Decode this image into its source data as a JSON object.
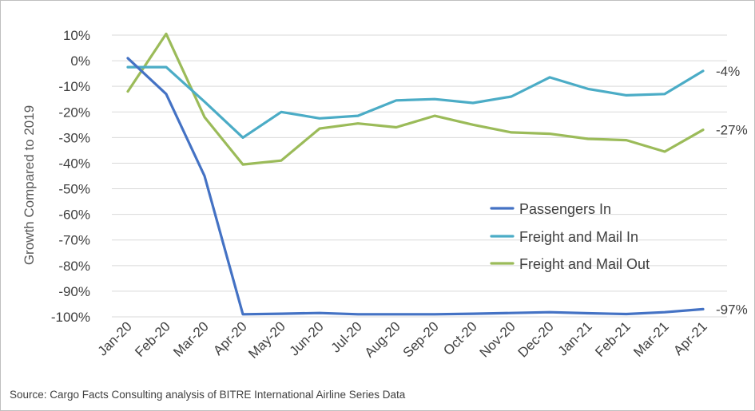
{
  "chart_data": {
    "type": "line",
    "ylabel": "Growth Compared to 2019",
    "ylim": [
      -100,
      10
    ],
    "yticks": [
      "10%",
      "0%",
      "-10%",
      "-20%",
      "-30%",
      "-40%",
      "-50%",
      "-60%",
      "-70%",
      "-80%",
      "-90%",
      "-100%"
    ],
    "categories": [
      "Jan-20",
      "Feb-20",
      "Mar-20",
      "Apr-20",
      "May-20",
      "Jun-20",
      "Jul-20",
      "Aug-20",
      "Sep-20",
      "Oct-20",
      "Nov-20",
      "Dec-20",
      "Jan-21",
      "Feb-21",
      "Mar-21",
      "Apr-21"
    ],
    "grid": true,
    "legend_position": "right-middle",
    "series": [
      {
        "name": "Passengers In",
        "color": "#4472c4",
        "end_label": "-97%",
        "values": [
          1,
          -13,
          -45,
          -99,
          -98.8,
          -98.5,
          -99,
          -99,
          -99,
          -98.8,
          -98.5,
          -98.2,
          -98.6,
          -98.9,
          -98.2,
          -97
        ]
      },
      {
        "name": "Freight and Mail In",
        "color": "#4bacc6",
        "end_label": "-4%",
        "values": [
          -2.5,
          -2.5,
          -16,
          -30,
          -20,
          -22.5,
          -21.5,
          -15.5,
          -15,
          -16.5,
          -14,
          -6.5,
          -11,
          -13.5,
          -13,
          -4
        ]
      },
      {
        "name": "Freight and Mail Out",
        "color": "#9bbb59",
        "end_label": "-27%",
        "values": [
          -12,
          10.5,
          -22,
          -40.5,
          -39,
          -26.5,
          -24.5,
          -26,
          -21.5,
          -25,
          -28,
          -28.5,
          -30.5,
          -31,
          -35.5,
          -27
        ]
      }
    ]
  },
  "source_note": "Source: Cargo Facts Consulting analysis of BITRE International Airline Series Data"
}
